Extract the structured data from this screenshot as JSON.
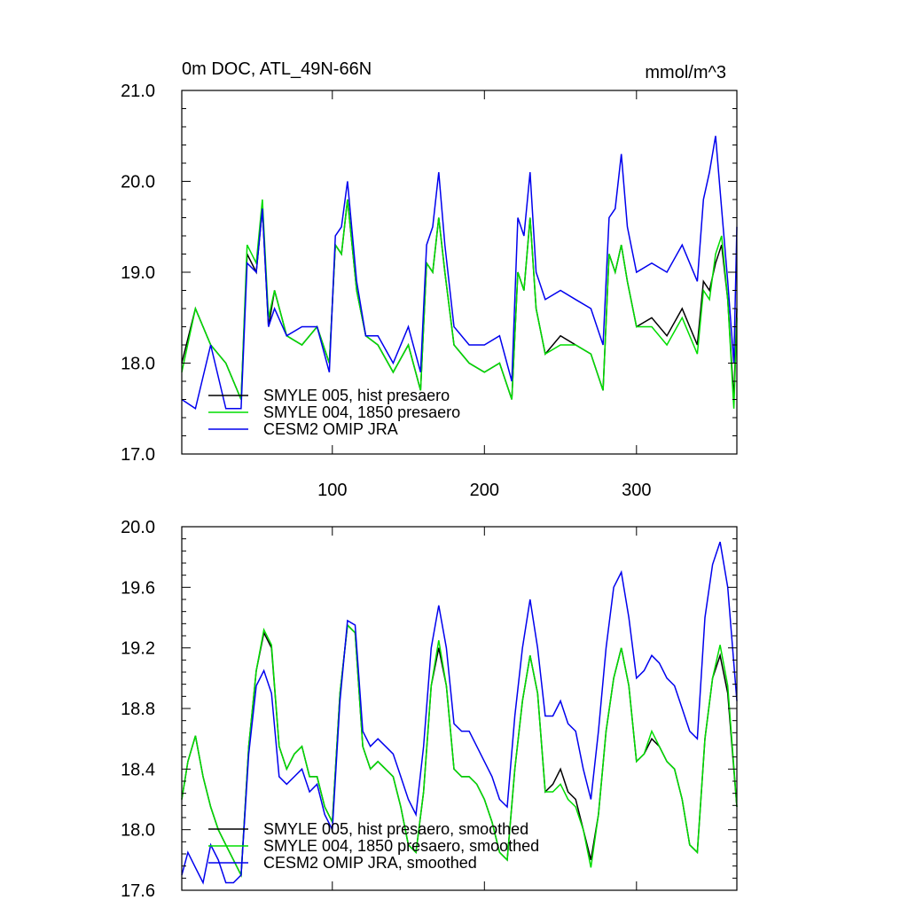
{
  "chart_data": [
    {
      "type": "line",
      "title": "0m DOC, ATL_49N-66N",
      "units": "mmol/m^3",
      "xlabel": "",
      "ylabel": "",
      "xlim": [
        1,
        366
      ],
      "ylim": [
        17.0,
        21.0
      ],
      "xticks": [
        100,
        200,
        300
      ],
      "xtick_labels": [
        "100",
        "200",
        "300"
      ],
      "yticks": [
        17.0,
        18.0,
        19.0,
        20.0,
        21.0
      ],
      "ytick_labels": [
        "17.0",
        "18.0",
        "19.0",
        "20.0",
        "21.0"
      ],
      "grid": false,
      "legend_position": "bottom-left",
      "series": [
        {
          "name": "SMYLE 005, hist presaero",
          "color": "#000000",
          "x": [
            1,
            10,
            20,
            30,
            40,
            44,
            50,
            54,
            58,
            62,
            70,
            80,
            90,
            98,
            102,
            106,
            110,
            116,
            122,
            130,
            140,
            150,
            158,
            162,
            166,
            170,
            174,
            180,
            190,
            200,
            210,
            218,
            222,
            226,
            230,
            234,
            240,
            250,
            260,
            270,
            278,
            282,
            286,
            290,
            294,
            300,
            310,
            320,
            330,
            340,
            344,
            348,
            352,
            356,
            360,
            364,
            366
          ],
          "y": [
            18.0,
            18.6,
            18.2,
            18.0,
            17.6,
            19.2,
            19.0,
            19.7,
            18.4,
            18.8,
            18.3,
            18.2,
            18.4,
            18.0,
            19.3,
            19.2,
            19.8,
            18.8,
            18.3,
            18.2,
            17.9,
            18.2,
            17.7,
            19.1,
            19.0,
            19.6,
            19.0,
            18.2,
            18.0,
            17.9,
            18.0,
            17.6,
            19.0,
            18.8,
            19.6,
            18.6,
            18.1,
            18.3,
            18.2,
            18.1,
            17.7,
            19.2,
            19.0,
            19.3,
            18.9,
            18.4,
            18.5,
            18.3,
            18.6,
            18.2,
            18.9,
            18.8,
            19.1,
            19.3,
            18.7,
            17.6,
            18.6
          ]
        },
        {
          "name": "SMYLE 004, 1850 presaero",
          "color": "#00dd00",
          "x": [
            1,
            10,
            20,
            30,
            40,
            44,
            50,
            54,
            58,
            62,
            70,
            80,
            90,
            98,
            102,
            106,
            110,
            116,
            122,
            130,
            140,
            150,
            158,
            162,
            166,
            170,
            174,
            180,
            190,
            200,
            210,
            218,
            222,
            226,
            230,
            234,
            240,
            250,
            260,
            270,
            278,
            282,
            286,
            290,
            294,
            300,
            310,
            320,
            330,
            340,
            344,
            348,
            352,
            356,
            360,
            364,
            366
          ],
          "y": [
            17.9,
            18.6,
            18.2,
            18.0,
            17.6,
            19.3,
            19.1,
            19.8,
            18.5,
            18.8,
            18.3,
            18.2,
            18.4,
            18.0,
            19.3,
            19.2,
            19.8,
            18.8,
            18.3,
            18.2,
            17.9,
            18.2,
            17.7,
            19.1,
            19.0,
            19.6,
            19.0,
            18.2,
            18.0,
            17.9,
            18.0,
            17.6,
            19.0,
            18.8,
            19.6,
            18.6,
            18.1,
            18.2,
            18.2,
            18.1,
            17.7,
            19.2,
            19.0,
            19.3,
            18.9,
            18.4,
            18.4,
            18.2,
            18.5,
            18.1,
            18.8,
            18.7,
            19.2,
            19.4,
            18.7,
            17.5,
            18.5
          ]
        },
        {
          "name": "CESM2 OMIP JRA",
          "color": "#0000ee",
          "x": [
            1,
            10,
            20,
            30,
            40,
            44,
            50,
            54,
            58,
            62,
            70,
            80,
            90,
            98,
            102,
            106,
            110,
            116,
            122,
            130,
            140,
            150,
            158,
            162,
            166,
            170,
            174,
            180,
            190,
            200,
            210,
            218,
            222,
            226,
            230,
            234,
            240,
            250,
            260,
            270,
            278,
            282,
            286,
            290,
            294,
            300,
            310,
            320,
            330,
            340,
            344,
            348,
            352,
            356,
            360,
            364,
            366
          ],
          "y": [
            17.6,
            17.5,
            18.2,
            17.5,
            17.5,
            19.1,
            19.0,
            19.7,
            18.4,
            18.6,
            18.3,
            18.4,
            18.4,
            17.9,
            19.4,
            19.5,
            20.0,
            18.9,
            18.3,
            18.3,
            18.0,
            18.4,
            17.9,
            19.3,
            19.5,
            20.1,
            19.3,
            18.4,
            18.2,
            18.2,
            18.3,
            17.8,
            19.6,
            19.4,
            20.1,
            19.0,
            18.7,
            18.8,
            18.7,
            18.6,
            18.2,
            19.6,
            19.7,
            20.3,
            19.5,
            19.0,
            19.1,
            19.0,
            19.3,
            18.9,
            19.8,
            20.1,
            20.5,
            19.7,
            18.9,
            18.0,
            19.5
          ]
        }
      ]
    },
    {
      "type": "line",
      "title": "",
      "units": "",
      "xlabel": "",
      "ylabel": "",
      "xlim": [
        1,
        366
      ],
      "ylim": [
        17.6,
        20.0
      ],
      "xticks": [
        100,
        200,
        300
      ],
      "xtick_labels": [],
      "yticks": [
        17.6,
        18.0,
        18.4,
        18.8,
        19.2,
        19.6,
        20.0
      ],
      "ytick_labels": [
        "17.6",
        "18.0",
        "18.4",
        "18.8",
        "19.2",
        "19.6",
        "20.0"
      ],
      "grid": false,
      "legend_position": "bottom-left",
      "series": [
        {
          "name": "SMYLE 005, hist presaero, smoothed",
          "color": "#000000",
          "x": [
            1,
            5,
            10,
            15,
            20,
            25,
            30,
            35,
            40,
            45,
            50,
            55,
            60,
            65,
            70,
            75,
            80,
            85,
            90,
            95,
            100,
            105,
            110,
            115,
            120,
            125,
            130,
            135,
            140,
            145,
            150,
            155,
            160,
            165,
            170,
            175,
            180,
            185,
            190,
            195,
            200,
            205,
            210,
            215,
            220,
            225,
            230,
            235,
            240,
            245,
            250,
            255,
            260,
            265,
            270,
            275,
            280,
            285,
            290,
            295,
            300,
            305,
            310,
            315,
            320,
            325,
            330,
            335,
            340,
            345,
            350,
            355,
            360,
            366
          ],
          "y": [
            18.2,
            18.45,
            18.62,
            18.35,
            18.15,
            18.0,
            17.9,
            17.8,
            17.7,
            18.55,
            19.05,
            19.3,
            19.2,
            18.55,
            18.4,
            18.5,
            18.55,
            18.35,
            18.35,
            18.15,
            18.05,
            18.9,
            19.35,
            19.3,
            18.55,
            18.4,
            18.45,
            18.4,
            18.35,
            18.15,
            17.9,
            17.85,
            18.25,
            18.95,
            19.2,
            18.95,
            18.4,
            18.35,
            18.35,
            18.3,
            18.2,
            18.05,
            17.85,
            17.8,
            18.4,
            18.85,
            19.15,
            18.9,
            18.25,
            18.3,
            18.4,
            18.25,
            18.2,
            18.0,
            17.8,
            18.1,
            18.65,
            19.0,
            19.2,
            18.95,
            18.45,
            18.5,
            18.6,
            18.55,
            18.45,
            18.4,
            18.2,
            17.9,
            17.85,
            18.6,
            19.0,
            19.15,
            18.9,
            18.15
          ]
        },
        {
          "name": "SMYLE 004, 1850 presaero, smoothed",
          "color": "#00dd00",
          "x": [
            1,
            5,
            10,
            15,
            20,
            25,
            30,
            35,
            40,
            45,
            50,
            55,
            60,
            65,
            70,
            75,
            80,
            85,
            90,
            95,
            100,
            105,
            110,
            115,
            120,
            125,
            130,
            135,
            140,
            145,
            150,
            155,
            160,
            165,
            170,
            175,
            180,
            185,
            190,
            195,
            200,
            205,
            210,
            215,
            220,
            225,
            230,
            235,
            240,
            245,
            250,
            255,
            260,
            265,
            270,
            275,
            280,
            285,
            290,
            295,
            300,
            305,
            310,
            315,
            320,
            325,
            330,
            335,
            340,
            345,
            350,
            355,
            360,
            366
          ],
          "y": [
            18.2,
            18.45,
            18.62,
            18.35,
            18.15,
            18.0,
            17.9,
            17.8,
            17.7,
            18.55,
            19.05,
            19.32,
            19.22,
            18.55,
            18.4,
            18.5,
            18.55,
            18.35,
            18.35,
            18.15,
            18.05,
            18.9,
            19.35,
            19.3,
            18.55,
            18.4,
            18.45,
            18.4,
            18.35,
            18.15,
            17.9,
            17.85,
            18.25,
            18.95,
            19.25,
            18.95,
            18.4,
            18.35,
            18.35,
            18.3,
            18.2,
            18.05,
            17.85,
            17.8,
            18.4,
            18.85,
            19.15,
            18.9,
            18.25,
            18.25,
            18.3,
            18.2,
            18.15,
            18.0,
            17.75,
            18.1,
            18.65,
            19.0,
            19.2,
            18.95,
            18.45,
            18.5,
            18.65,
            18.55,
            18.45,
            18.4,
            18.2,
            17.9,
            17.85,
            18.6,
            19.0,
            19.22,
            18.95,
            18.15
          ]
        },
        {
          "name": "CESM2 OMIP JRA, smoothed",
          "color": "#0000ee",
          "x": [
            1,
            5,
            10,
            15,
            20,
            25,
            30,
            35,
            40,
            45,
            50,
            55,
            60,
            65,
            70,
            75,
            80,
            85,
            90,
            95,
            100,
            105,
            110,
            115,
            120,
            125,
            130,
            135,
            140,
            145,
            150,
            155,
            160,
            165,
            170,
            175,
            180,
            185,
            190,
            195,
            200,
            205,
            210,
            215,
            220,
            225,
            230,
            235,
            240,
            245,
            250,
            255,
            260,
            265,
            270,
            275,
            280,
            285,
            290,
            295,
            300,
            305,
            310,
            315,
            320,
            325,
            330,
            335,
            340,
            345,
            350,
            355,
            360,
            366
          ],
          "y": [
            17.7,
            17.85,
            17.75,
            17.65,
            17.9,
            17.8,
            17.65,
            17.65,
            17.7,
            18.5,
            18.95,
            19.05,
            18.9,
            18.35,
            18.3,
            18.35,
            18.4,
            18.25,
            18.3,
            18.1,
            18.0,
            18.85,
            19.38,
            19.35,
            18.65,
            18.55,
            18.6,
            18.55,
            18.5,
            18.35,
            18.2,
            18.1,
            18.55,
            19.2,
            19.48,
            19.2,
            18.7,
            18.65,
            18.65,
            18.55,
            18.45,
            18.35,
            18.2,
            18.15,
            18.75,
            19.2,
            19.52,
            19.2,
            18.75,
            18.75,
            18.85,
            18.7,
            18.65,
            18.4,
            18.2,
            18.65,
            19.2,
            19.6,
            19.7,
            19.4,
            19.0,
            19.05,
            19.15,
            19.1,
            19.0,
            18.95,
            18.8,
            18.65,
            18.6,
            19.4,
            19.75,
            19.9,
            19.6,
            18.85
          ]
        }
      ]
    }
  ]
}
